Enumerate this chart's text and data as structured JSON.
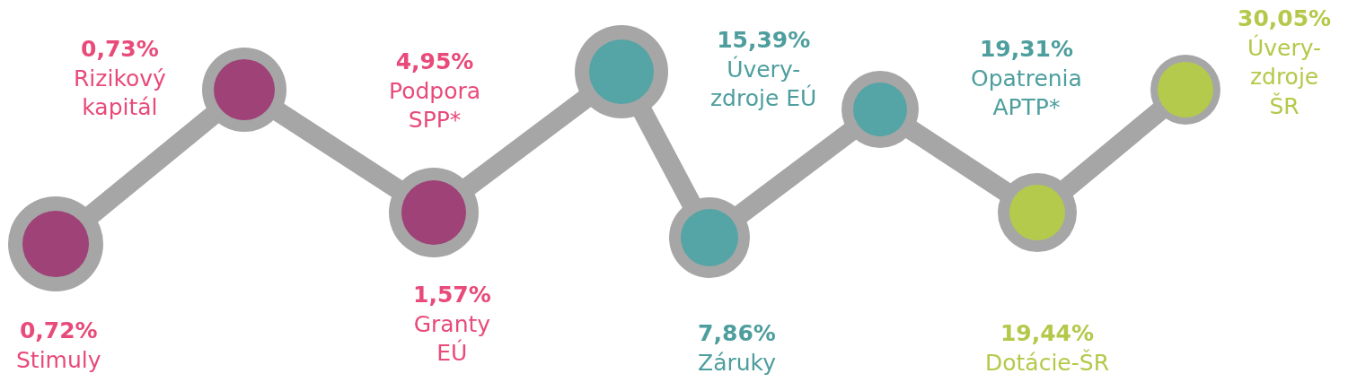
{
  "chart_data": {
    "type": "other",
    "categories": [
      "Stimuly",
      "Rizikový kapitál",
      "Granty EÚ",
      "Podpora SPP*",
      "Záruky",
      "Úvery-zdroje EÚ",
      "Opatrenia APTP*",
      "Dotácie-ŠR",
      "Úvery-zdroje ŠR"
    ],
    "values": [
      0.72,
      0.73,
      1.57,
      4.95,
      7.86,
      15.39,
      19.31,
      19.44,
      30.05
    ],
    "value_labels": [
      "0,72%",
      "0,73%",
      "1,57%",
      "4,95%",
      "7,86%",
      "15,39%",
      "19,31%",
      "19,44%",
      "30,05%"
    ],
    "colors": [
      "#e84a7a",
      "#e84a7a",
      "#e84a7a",
      "#e84a7a",
      "#4e9e9e",
      "#4e9e9e",
      "#4e9e9e",
      "#b5c84a",
      "#b5c84a"
    ]
  }
}
